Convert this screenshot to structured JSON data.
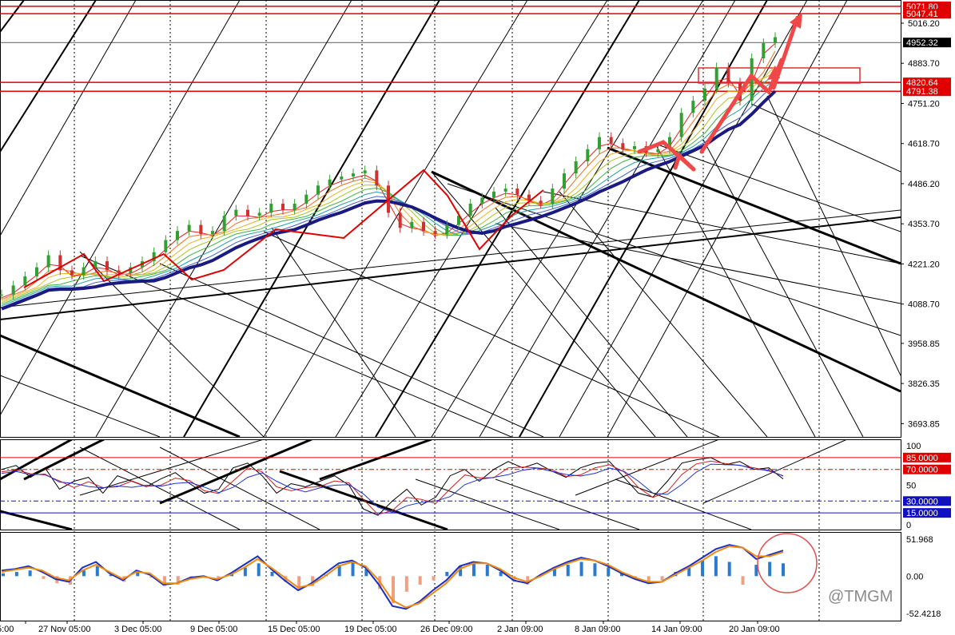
{
  "watermark": "@TMGM",
  "chart_data": [
    {
      "type": "line",
      "panel": "price",
      "y_axis_labels": [
        "5016.20",
        "4883.70",
        "4751.20",
        "4618.70",
        "4486.20",
        "4353.70",
        "4221.20",
        "4088.70",
        "3958.85",
        "3826.35",
        "3693.85"
      ],
      "ylim": [
        3650,
        5090
      ],
      "price_lines": [
        {
          "value": 5071.8,
          "label": "5071.80",
          "color": "#e00000",
          "style": "solid"
        },
        {
          "value": 5047.41,
          "label": "5047.41",
          "color": "#e00000",
          "style": "solid"
        },
        {
          "value": 4952.32,
          "label": "4952.32",
          "color": "#000000",
          "style": "solid"
        },
        {
          "value": 4820.64,
          "label": "4820.64",
          "color": "#e00000",
          "style": "solid"
        },
        {
          "value": 4791.38,
          "label": "4791.38",
          "color": "#e00000",
          "style": "solid"
        }
      ],
      "x_axis_labels": [
        "5:00",
        "27 Nov 05:00",
        "3 Dec 05:00",
        "9 Dec 05:00",
        "15 Dec 05:00",
        "19 Dec 05:00",
        "26 Dec 09:00",
        "2 Jan 09:00",
        "8 Jan 09:00",
        "14 Jan 09:00",
        "20 Jan 09:00"
      ],
      "series": [
        {
          "values": [
            4120,
            4150,
            4180,
            4210,
            4250,
            4200,
            4185,
            4210,
            4230,
            4200,
            4190,
            4210,
            4230,
            4260,
            4300,
            4330,
            4350,
            4320,
            4330,
            4380,
            4400,
            4380,
            4390,
            4420,
            4400,
            4420,
            4450,
            4480,
            4500,
            4510,
            4520,
            4530,
            4480,
            4390,
            4340,
            4360,
            4330,
            4320,
            4350,
            4380,
            4420,
            4440,
            4460,
            4470,
            4450,
            4430,
            4420,
            4470,
            4520,
            4560,
            4600,
            4640,
            4620,
            4600,
            4610,
            4590,
            4600,
            4640,
            4720,
            4760,
            4800,
            4870,
            4820,
            4760,
            4900,
            4950,
            4970
          ]
        }
      ]
    },
    {
      "type": "line",
      "panel": "stochastic",
      "y_axis_labels": [
        "100",
        "85.0000",
        "70.0000",
        "50",
        "30.0000",
        "15.0000",
        "0"
      ],
      "ylim": [
        0,
        100
      ],
      "levels": [
        85,
        70,
        30,
        15
      ],
      "series": [
        {
          "values": [
            70,
            75,
            60,
            72,
            45,
            55,
            60,
            40,
            62,
            55,
            48,
            58,
            66,
            52,
            40,
            45,
            72,
            78,
            62,
            40,
            52,
            48,
            55,
            62,
            50,
            20,
            12,
            30,
            45,
            25,
            35,
            62,
            70,
            55,
            70,
            80,
            72,
            78,
            68,
            60,
            72,
            78,
            80,
            60,
            40,
            35,
            55,
            78,
            82,
            85,
            76,
            80,
            70,
            72,
            58
          ]
        }
      ]
    },
    {
      "type": "line",
      "panel": "macd",
      "y_axis_labels": [
        "51.968",
        "0.00",
        "-52.4218"
      ],
      "ylim": [
        -52.4218,
        51.968
      ],
      "series": [
        {
          "values": [
            8,
            10,
            14,
            6,
            -4,
            -8,
            12,
            20,
            4,
            -6,
            8,
            2,
            -12,
            -10,
            -2,
            0,
            -6,
            4,
            16,
            28,
            10,
            -6,
            -20,
            -10,
            4,
            18,
            22,
            12,
            -12,
            -42,
            -46,
            -36,
            -20,
            -6,
            14,
            20,
            18,
            8,
            -6,
            -10,
            2,
            12,
            20,
            26,
            22,
            14,
            4,
            -4,
            -10,
            -8,
            4,
            14,
            26,
            38,
            44,
            40,
            24,
            30,
            36
          ]
        },
        {
          "values": [
            6,
            9,
            12,
            8,
            -2,
            -6,
            8,
            16,
            6,
            -4,
            6,
            4,
            -10,
            -10,
            -4,
            -1,
            -4,
            2,
            12,
            24,
            12,
            -2,
            -16,
            -12,
            0,
            14,
            20,
            14,
            -6,
            -34,
            -44,
            -38,
            -24,
            -10,
            10,
            18,
            18,
            10,
            -2,
            -8,
            0,
            10,
            18,
            24,
            22,
            16,
            6,
            -2,
            -8,
            -8,
            2,
            12,
            22,
            34,
            42,
            40,
            28,
            28,
            34
          ]
        }
      ],
      "histogram": [
        4,
        6,
        8,
        -4,
        -10,
        -12,
        8,
        14,
        2,
        -8,
        6,
        -2,
        -14,
        -12,
        -4,
        -2,
        -6,
        4,
        12,
        18,
        6,
        -8,
        -20,
        -14,
        2,
        16,
        20,
        10,
        -18,
        -38,
        -22,
        -12,
        -6,
        6,
        14,
        18,
        16,
        6,
        -8,
        -12,
        2,
        10,
        16,
        20,
        18,
        12,
        4,
        -4,
        -10,
        -6,
        6,
        14,
        22,
        28,
        20,
        -12,
        16,
        20,
        18
      ]
    }
  ]
}
